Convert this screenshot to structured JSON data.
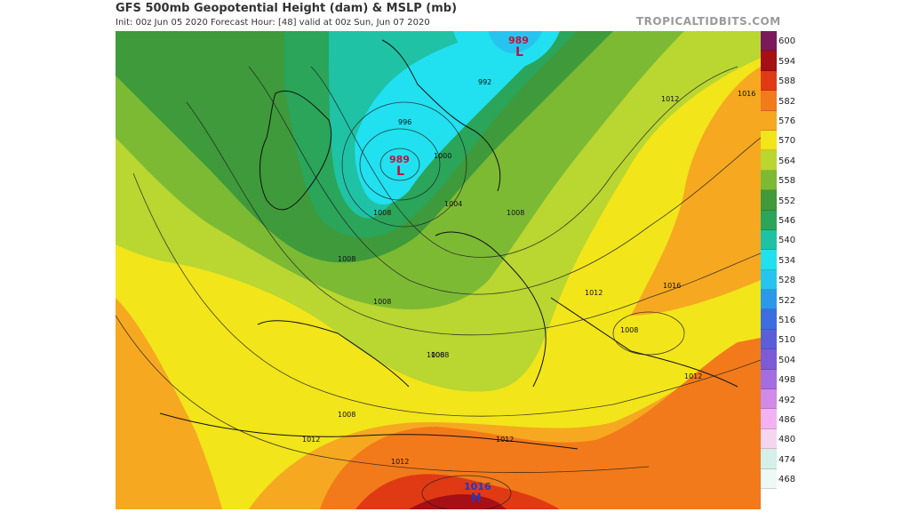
{
  "header": {
    "title": "GFS 500mb Geopotential Height (dam) & MSLP (mb)",
    "subtitle": "Init: 00z Jun 05 2020   Forecast Hour: [48]   valid at 00z Sun, Jun 07 2020",
    "brand": "TROPICALTIDBITS.COM"
  },
  "legend": {
    "unit": "dam",
    "levels": [
      {
        "label": "600",
        "color": "#7a1a5c"
      },
      {
        "label": "594",
        "color": "#a50f15"
      },
      {
        "label": "588",
        "color": "#e03a14"
      },
      {
        "label": "582",
        "color": "#f27a1a"
      },
      {
        "label": "576",
        "color": "#f6a821"
      },
      {
        "label": "570",
        "color": "#f2e51a"
      },
      {
        "label": "564",
        "color": "#b9d631"
      },
      {
        "label": "558",
        "color": "#7cba34"
      },
      {
        "label": "552",
        "color": "#3e9a3a"
      },
      {
        "label": "546",
        "color": "#2aa55a"
      },
      {
        "label": "540",
        "color": "#1fc2a5"
      },
      {
        "label": "534",
        "color": "#21e0ef"
      },
      {
        "label": "528",
        "color": "#27c4f0"
      },
      {
        "label": "522",
        "color": "#2c98ea"
      },
      {
        "label": "516",
        "color": "#3d6ee0"
      },
      {
        "label": "510",
        "color": "#5a5fd8"
      },
      {
        "label": "504",
        "color": "#7c5bd6"
      },
      {
        "label": "498",
        "color": "#a46ee0"
      },
      {
        "label": "492",
        "color": "#d08ae8"
      },
      {
        "label": "486",
        "color": "#f2b3f2"
      },
      {
        "label": "480",
        "color": "#f5d6f1"
      },
      {
        "label": "474",
        "color": "#d4f0e8"
      },
      {
        "label": "468",
        "color": "#eef8f4"
      }
    ]
  },
  "map": {
    "pressure_centers": [
      {
        "type": "L",
        "value": "989",
        "name": "low-north-sea"
      },
      {
        "type": "L",
        "value": "989",
        "name": "low-scandinavia"
      },
      {
        "type": "H",
        "value": "1016",
        "name": "high-sahara"
      }
    ],
    "isobar_labels": [
      "992",
      "996",
      "1000",
      "1004",
      "1008",
      "1008",
      "1008",
      "1008",
      "1008",
      "1008",
      "1012",
      "1012",
      "1012",
      "1012",
      "1012",
      "1016",
      "1016",
      "1012",
      "1008",
      "1008"
    ]
  }
}
